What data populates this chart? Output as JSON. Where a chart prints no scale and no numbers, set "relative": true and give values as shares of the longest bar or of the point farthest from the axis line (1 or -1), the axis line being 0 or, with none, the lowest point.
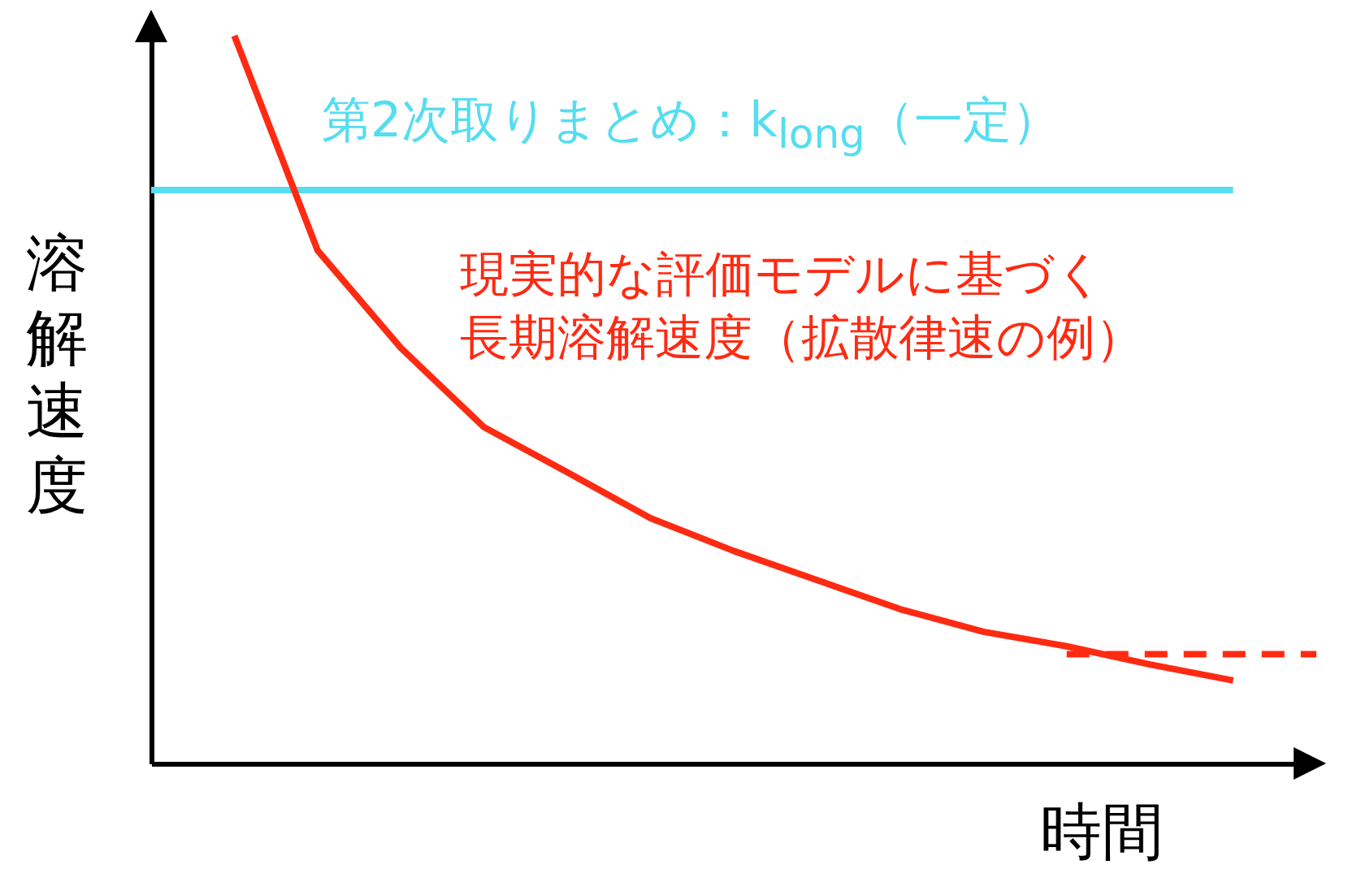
{
  "chart_data": {
    "type": "line",
    "relative": true,
    "xlabel": "時間",
    "ylabel": "溶解速度",
    "categories": [
      null,
      null,
      null,
      null,
      null,
      null,
      null,
      null,
      null,
      null,
      null,
      null,
      null,
      null,
      null
    ],
    "series": [
      {
        "name": "第2次取りまとめ：k$_{long}$（一定）",
        "color": "#55ddf0",
        "values": [
          0.788,
          0.788,
          0.788,
          0.788,
          0.788,
          0.788,
          0.788,
          0.788,
          0.788,
          0.788,
          0.788,
          0.788,
          0.788,
          0.788,
          null
        ]
      },
      {
        "name": "現実的な評価モデルに基づく長期溶解速度（拡散律速の例）",
        "color": "#ff2a12",
        "values": [
          null,
          1,
          0.705,
          0.571,
          0.462,
          0.4,
          0.337,
          0.292,
          0.252,
          0.212,
          0.181,
          0.161,
          0.136,
          0.114,
          null
        ]
      },
      {
        "color": "#ff2a12",
        "line_style": "dashed",
        "values": [
          null,
          null,
          null,
          null,
          null,
          null,
          null,
          null,
          null,
          null,
          null,
          0.15,
          0.15,
          0.15,
          0.15
        ]
      }
    ]
  }
}
